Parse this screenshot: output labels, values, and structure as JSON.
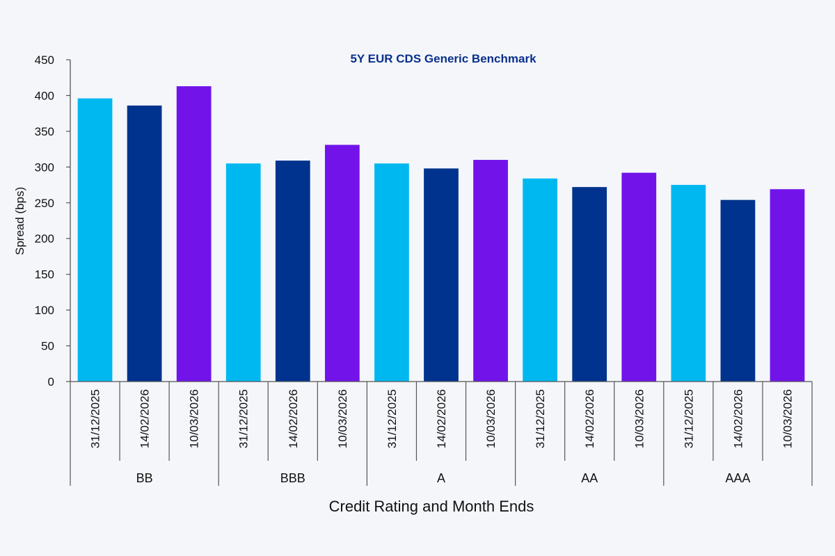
{
  "chart_data": {
    "type": "bar",
    "title": "5Y EUR CDS Generic Benchmark",
    "xlabel": "Credit Rating and Month Ends",
    "ylabel": "Spread (bps)",
    "ylim": [
      0,
      450
    ],
    "yticks": [
      0,
      50,
      100,
      150,
      200,
      250,
      300,
      350,
      400,
      450
    ],
    "grid": false,
    "legend": "none",
    "groups": [
      "BB",
      "BBB",
      "A",
      "AA",
      "AAA"
    ],
    "dates": [
      "31/12/2025",
      "14/02/2026",
      "10/03/2026"
    ],
    "series": [
      {
        "name": "31/12/2025",
        "color": "#00b8f0",
        "values": [
          396,
          305,
          305,
          284,
          275
        ]
      },
      {
        "name": "14/02/2026",
        "color": "#00338d",
        "values": [
          386,
          309,
          298,
          272,
          254
        ]
      },
      {
        "name": "10/03/2026",
        "color": "#7213ea",
        "values": [
          413,
          331,
          310,
          292,
          269
        ]
      }
    ]
  }
}
